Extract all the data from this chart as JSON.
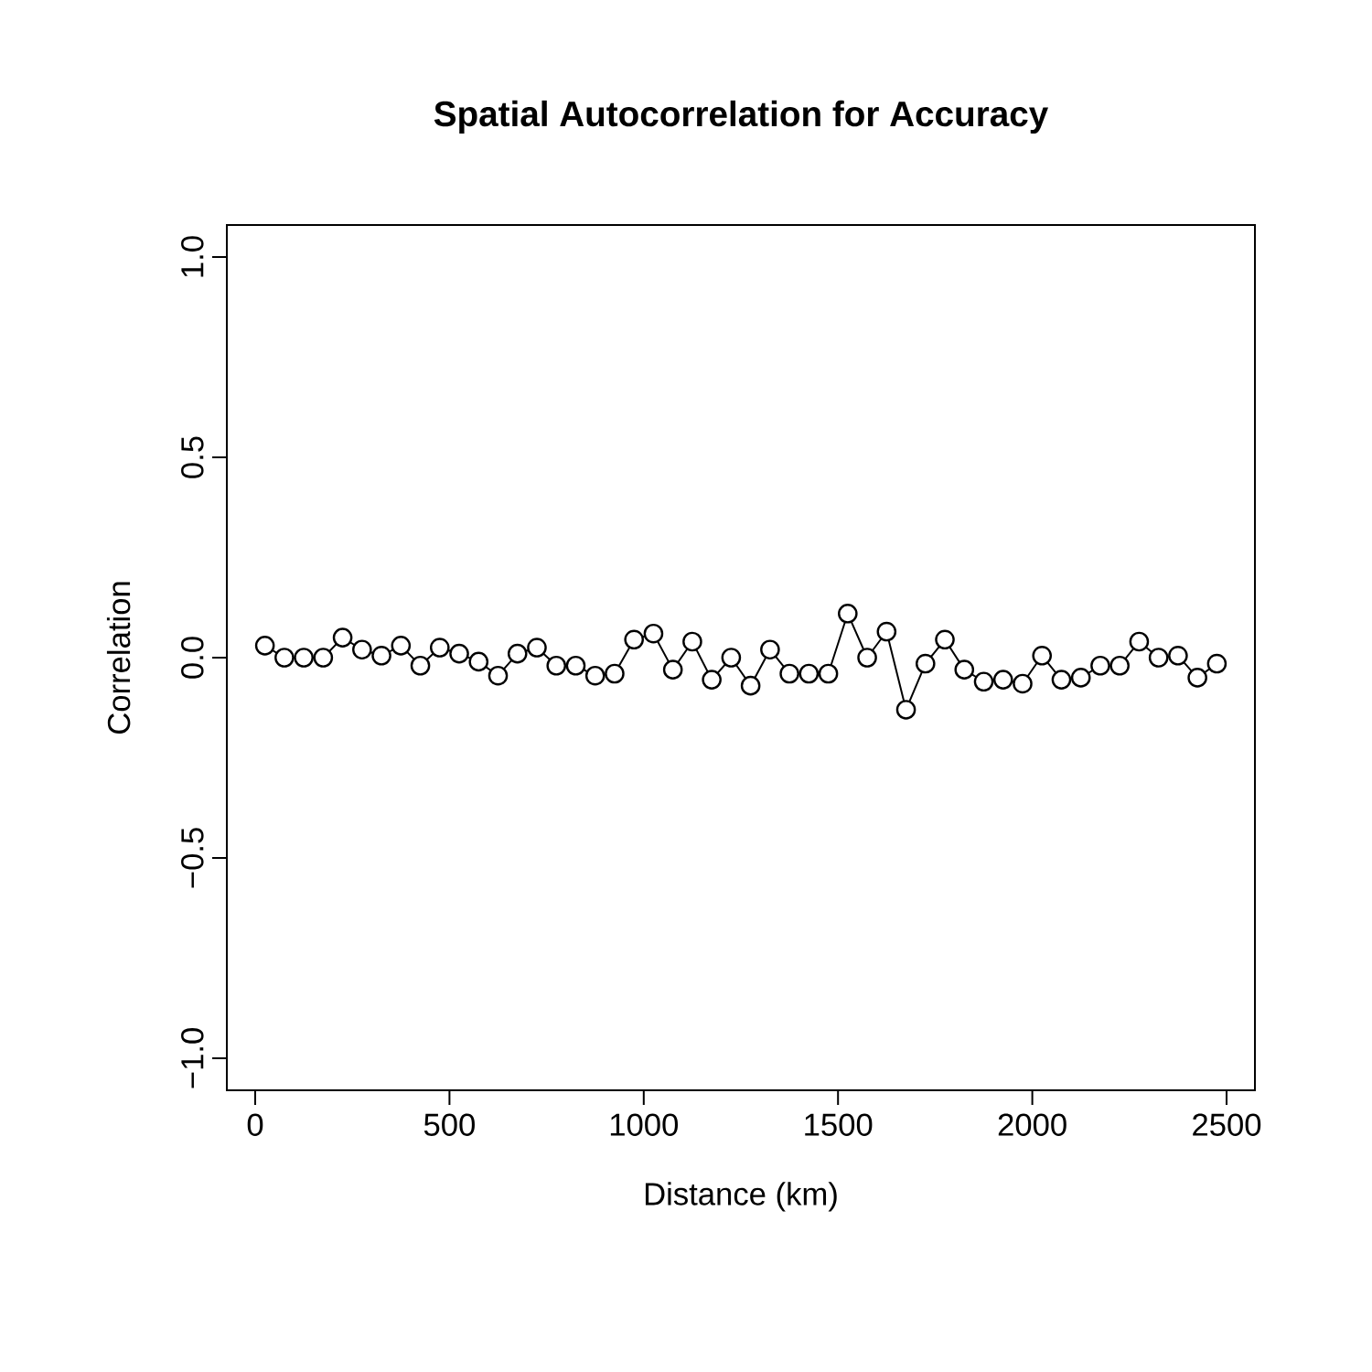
{
  "chart_data": {
    "type": "line",
    "title": "Spatial Autocorrelation for Accuracy",
    "xlabel": "Distance (km)",
    "ylabel": "Correlation",
    "x": [
      25,
      75,
      125,
      175,
      225,
      275,
      325,
      375,
      425,
      475,
      525,
      575,
      625,
      675,
      725,
      775,
      825,
      875,
      925,
      975,
      1025,
      1075,
      1125,
      1175,
      1225,
      1275,
      1325,
      1375,
      1425,
      1475,
      1525,
      1575,
      1625,
      1675,
      1725,
      1775,
      1825,
      1875,
      1925,
      1975,
      2025,
      2075,
      2125,
      2175,
      2225,
      2275,
      2325,
      2375,
      2425,
      2475
    ],
    "series": [
      {
        "color": "#000000",
        "values": [
          0.03,
          0.0,
          0.0,
          0.0,
          0.05,
          0.02,
          0.005,
          0.03,
          -0.02,
          0.025,
          0.01,
          -0.01,
          -0.045,
          0.01,
          0.025,
          -0.02,
          -0.02,
          -0.045,
          -0.04,
          0.045,
          0.06,
          -0.03,
          0.04,
          -0.055,
          0.0,
          -0.07,
          0.02,
          -0.04,
          -0.04,
          -0.04,
          0.11,
          0.0,
          0.065,
          -0.13,
          -0.015,
          0.045,
          -0.03,
          -0.06,
          -0.055,
          -0.065,
          0.005,
          -0.055,
          -0.05,
          -0.02,
          -0.02,
          0.04,
          0.0,
          0.005,
          -0.05,
          -0.015
        ]
      }
    ],
    "xlim": [
      -73,
      2573
    ],
    "ylim": [
      -1.08,
      1.08
    ],
    "xticks": [
      0,
      500,
      1000,
      1500,
      2000,
      2500
    ],
    "yticks": [
      {
        "value": -1,
        "label": "−1.0"
      },
      {
        "value": -0.5,
        "label": "−0.5"
      },
      {
        "value": 0,
        "label": "0.0"
      },
      {
        "value": 0.5,
        "label": "0.5"
      },
      {
        "value": 1,
        "label": "1.0"
      }
    ],
    "marker": "circle",
    "line_style": "solid"
  }
}
